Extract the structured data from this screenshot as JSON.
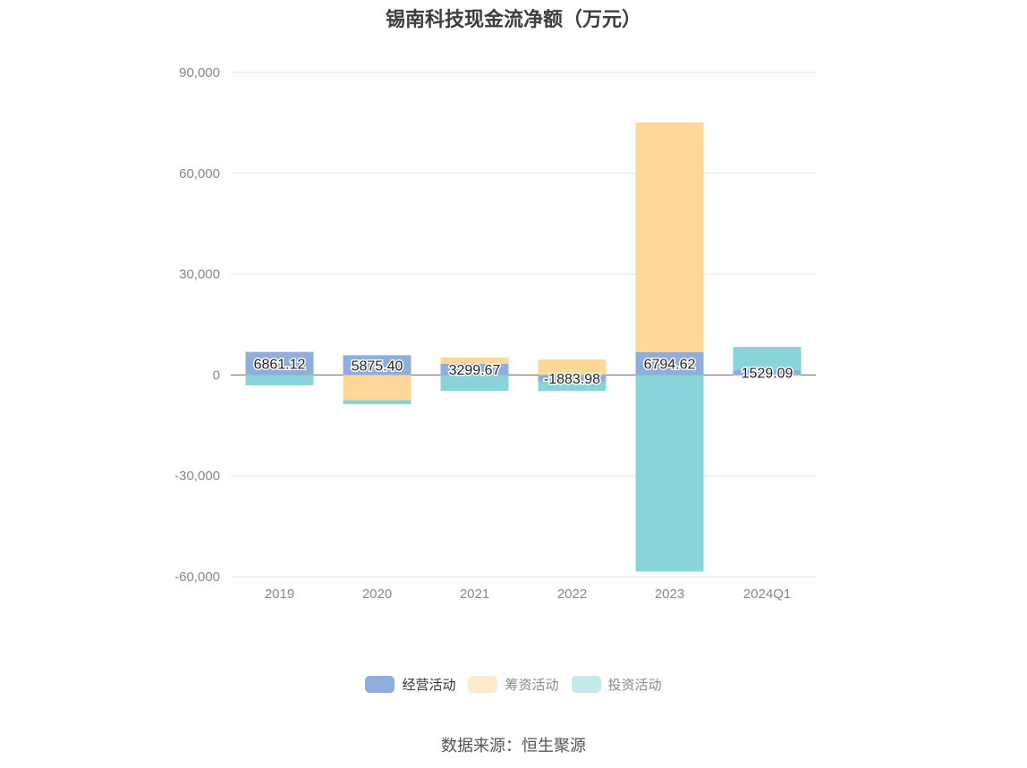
{
  "chart_data": {
    "type": "bar",
    "stacked": true,
    "title": "锡南科技现金流净额（万元）",
    "categories": [
      "2019",
      "2020",
      "2021",
      "2022",
      "2023",
      "2024Q1"
    ],
    "series": [
      {
        "name": "经营活动",
        "color": "#8eaedb",
        "values": [
          6861.12,
          5875.4,
          3299.67,
          -1883.98,
          6794.62,
          1529.09
        ]
      },
      {
        "name": "筹资活动",
        "color": "#fdd899",
        "values": [
          0,
          -7500,
          1900,
          4600,
          68300,
          -300
        ]
      },
      {
        "name": "投资活动",
        "color": "#88d4d8",
        "values": [
          -3100,
          -1200,
          -4700,
          -2900,
          -58500,
          6800
        ]
      }
    ],
    "data_labels": [
      "6861.12",
      "5875.40",
      "3299.67",
      "-1883.98",
      "6794.62",
      "1529.09"
    ],
    "ylim": [
      -60000,
      90000
    ],
    "yticks": [
      90000,
      60000,
      30000,
      0,
      -30000,
      -60000
    ],
    "ytick_labels": [
      "90,000",
      "60,000",
      "30,000",
      "0",
      "-30,000",
      "-60,000"
    ],
    "grid": true,
    "legend_position": "bottom-center",
    "legend_active": [
      true,
      false,
      false
    ]
  },
  "source": "数据来源：恒生聚源"
}
